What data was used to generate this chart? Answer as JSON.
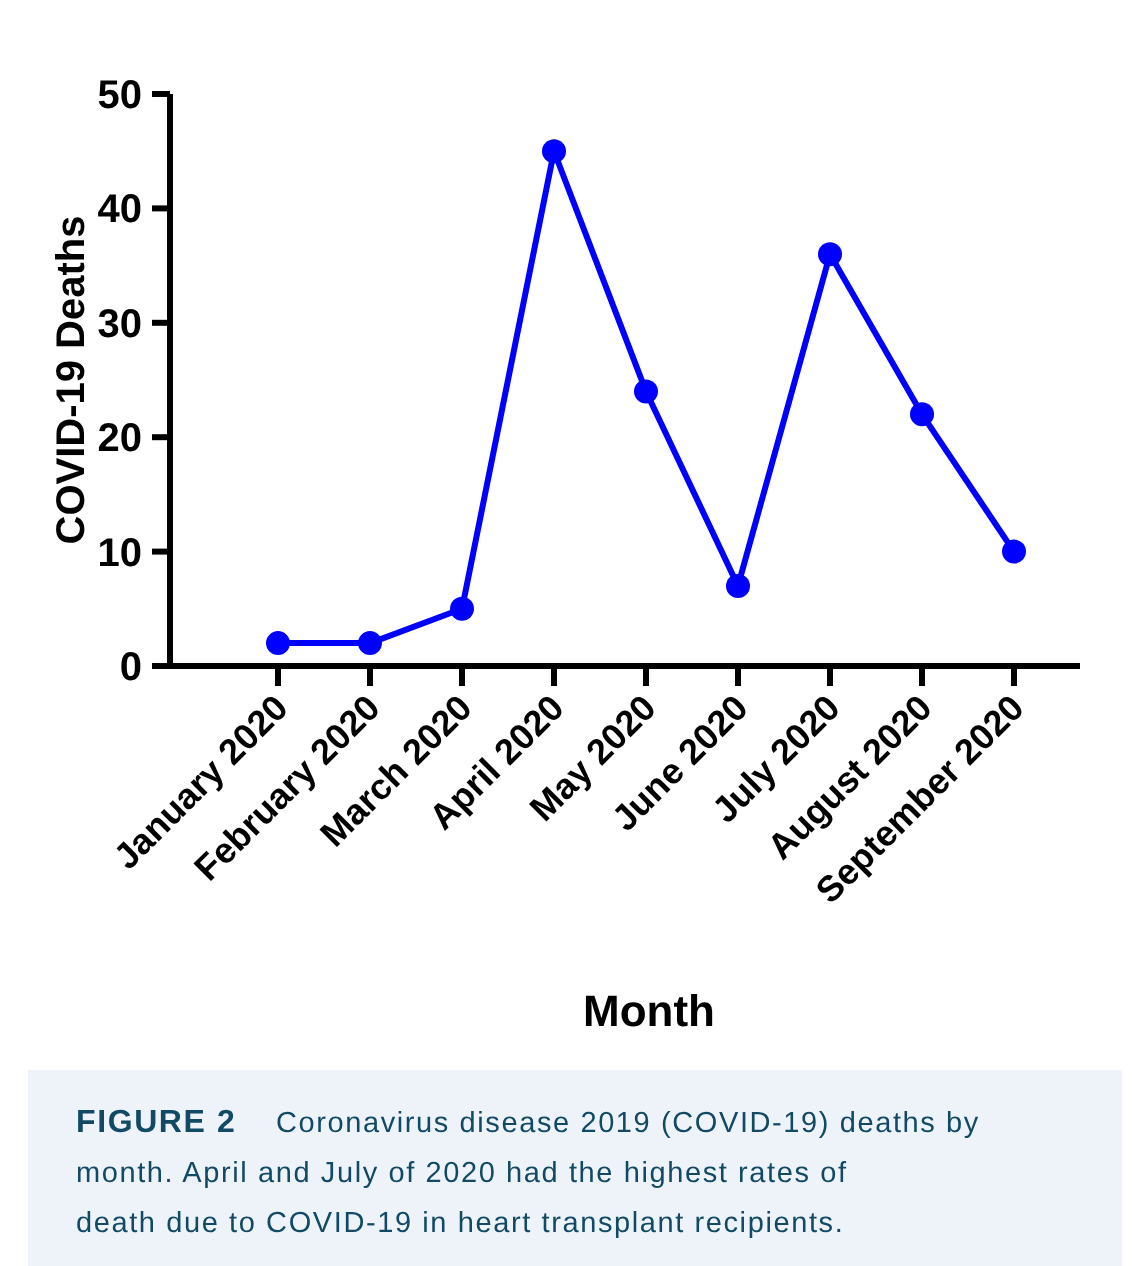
{
  "chart_data": {
    "type": "line",
    "ylabel": "COVID-19 Deaths",
    "xlabel": "Month",
    "categories": [
      "January 2020",
      "February 2020",
      "March 2020",
      "April 2020",
      "May 2020",
      "June 2020",
      "July 2020",
      "August 2020",
      "September 2020"
    ],
    "series": [
      {
        "color": "#0000ff",
        "values": [
          2,
          2,
          5,
          45,
          24,
          7,
          36,
          22,
          10
        ]
      }
    ],
    "ylim": [
      0,
      50
    ],
    "yticks": [
      0,
      10,
      20,
      30,
      40,
      50
    ],
    "marker": "circle",
    "line_style": "solid",
    "grid": false,
    "annotations": [
      "FIGURE 2",
      "Coronavirus disease 2019 (COVID-19) deaths by month. April and July of 2020 had the highest rates of death due to COVID-19 in heart transplant recipients."
    ]
  }
}
